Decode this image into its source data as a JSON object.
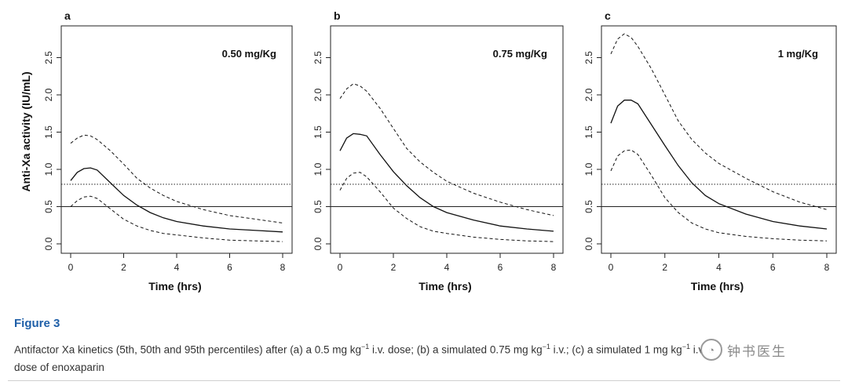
{
  "figure": {
    "caption_title": "Figure 3",
    "caption_parts": [
      "Antifactor Xa kinetics (5th, 50th and 95th percentiles) after (a) a 0.5 mg kg",
      "−1",
      " i.v. dose; (b) a simulated 0.75 mg kg",
      "−1",
      " i.v.; (c) a simulated 1 mg kg",
      "−1",
      " i.v."
    ],
    "caption_line2": "dose of enoxaparin",
    "watermark": "钟书医生"
  },
  "chart_data": [
    {
      "type": "line",
      "panel_label": "a",
      "dose_label": "0.50 mg/Kg",
      "xlabel": "Time (hrs)",
      "ylabel": "Anti-Xa activity (IU/mL)",
      "xlim": [
        0,
        8
      ],
      "ylim": [
        0,
        2.8
      ],
      "xticks": [
        0,
        2,
        4,
        6,
        8
      ],
      "yticks": [
        0.0,
        0.5,
        1.0,
        1.5,
        2.0,
        2.5
      ],
      "reference_lines": [
        {
          "y": 0.8,
          "style": "dotted"
        },
        {
          "y": 0.5,
          "style": "solid"
        }
      ],
      "series": [
        {
          "style": "dashed",
          "x": [
            0,
            0.25,
            0.5,
            0.75,
            1.0,
            1.5,
            2.0,
            2.5,
            3.0,
            3.5,
            4.0,
            5.0,
            6.0,
            7.0,
            8.0
          ],
          "y": [
            1.35,
            1.42,
            1.46,
            1.45,
            1.4,
            1.25,
            1.07,
            0.88,
            0.75,
            0.65,
            0.57,
            0.46,
            0.38,
            0.33,
            0.28
          ]
        },
        {
          "style": "solid",
          "x": [
            0,
            0.25,
            0.5,
            0.75,
            1.0,
            1.5,
            2.0,
            2.5,
            3.0,
            3.5,
            4.0,
            5.0,
            6.0,
            7.0,
            8.0
          ],
          "y": [
            0.85,
            0.96,
            1.01,
            1.02,
            0.99,
            0.82,
            0.65,
            0.52,
            0.42,
            0.35,
            0.3,
            0.24,
            0.2,
            0.18,
            0.16
          ]
        },
        {
          "style": "dashed",
          "x": [
            0,
            0.25,
            0.5,
            0.75,
            1.0,
            1.5,
            2.0,
            2.5,
            3.0,
            3.5,
            4.0,
            5.0,
            6.0,
            7.0,
            8.0
          ],
          "y": [
            0.5,
            0.58,
            0.63,
            0.64,
            0.61,
            0.47,
            0.33,
            0.24,
            0.18,
            0.14,
            0.12,
            0.08,
            0.05,
            0.04,
            0.03
          ]
        }
      ]
    },
    {
      "type": "line",
      "panel_label": "b",
      "dose_label": "0.75 mg/Kg",
      "xlabel": "Time (hrs)",
      "ylabel": "",
      "xlim": [
        0,
        8
      ],
      "ylim": [
        0,
        2.8
      ],
      "xticks": [
        0,
        2,
        4,
        6,
        8
      ],
      "yticks": [
        0.0,
        0.5,
        1.0,
        1.5,
        2.0,
        2.5
      ],
      "reference_lines": [
        {
          "y": 0.8,
          "style": "dotted"
        },
        {
          "y": 0.5,
          "style": "solid"
        }
      ],
      "series": [
        {
          "style": "dashed",
          "x": [
            0,
            0.25,
            0.5,
            0.75,
            1.0,
            1.5,
            2.0,
            2.5,
            3.0,
            3.5,
            4.0,
            5.0,
            6.0,
            7.0,
            8.0
          ],
          "y": [
            1.95,
            2.08,
            2.15,
            2.12,
            2.05,
            1.82,
            1.55,
            1.28,
            1.1,
            0.96,
            0.84,
            0.68,
            0.56,
            0.46,
            0.38
          ]
        },
        {
          "style": "solid",
          "x": [
            0,
            0.25,
            0.5,
            0.75,
            1.0,
            1.5,
            2.0,
            2.5,
            3.0,
            3.5,
            4.0,
            5.0,
            6.0,
            7.0,
            8.0
          ],
          "y": [
            1.25,
            1.42,
            1.48,
            1.47,
            1.45,
            1.2,
            0.97,
            0.78,
            0.62,
            0.5,
            0.42,
            0.32,
            0.24,
            0.2,
            0.17
          ]
        },
        {
          "style": "dashed",
          "x": [
            0,
            0.25,
            0.5,
            0.75,
            1.0,
            1.5,
            2.0,
            2.5,
            3.0,
            3.5,
            4.0,
            5.0,
            6.0,
            7.0,
            8.0
          ],
          "y": [
            0.72,
            0.88,
            0.95,
            0.96,
            0.9,
            0.7,
            0.48,
            0.34,
            0.23,
            0.17,
            0.14,
            0.09,
            0.06,
            0.04,
            0.03
          ]
        }
      ]
    },
    {
      "type": "line",
      "panel_label": "c",
      "dose_label": "1 mg/Kg",
      "xlabel": "Time (hrs)",
      "ylabel": "",
      "xlim": [
        0,
        8
      ],
      "ylim": [
        0,
        2.8
      ],
      "xticks": [
        0,
        2,
        4,
        6,
        8
      ],
      "yticks": [
        0.0,
        0.5,
        1.0,
        1.5,
        2.0,
        2.5
      ],
      "reference_lines": [
        {
          "y": 0.8,
          "style": "dotted"
        },
        {
          "y": 0.5,
          "style": "solid"
        }
      ],
      "series": [
        {
          "style": "dashed",
          "x": [
            0,
            0.25,
            0.5,
            0.75,
            1.0,
            1.5,
            2.0,
            2.5,
            3.0,
            3.5,
            4.0,
            5.0,
            6.0,
            7.0,
            8.0
          ],
          "y": [
            2.55,
            2.75,
            2.82,
            2.77,
            2.65,
            2.35,
            2.0,
            1.65,
            1.4,
            1.22,
            1.08,
            0.88,
            0.7,
            0.56,
            0.46
          ]
        },
        {
          "style": "solid",
          "x": [
            0,
            0.25,
            0.5,
            0.75,
            1.0,
            1.5,
            2.0,
            2.5,
            3.0,
            3.5,
            4.0,
            5.0,
            6.0,
            7.0,
            8.0
          ],
          "y": [
            1.62,
            1.85,
            1.93,
            1.93,
            1.88,
            1.6,
            1.32,
            1.05,
            0.82,
            0.65,
            0.54,
            0.4,
            0.3,
            0.24,
            0.2
          ]
        },
        {
          "style": "dashed",
          "x": [
            0,
            0.25,
            0.5,
            0.75,
            1.0,
            1.5,
            2.0,
            2.5,
            3.0,
            3.5,
            4.0,
            5.0,
            6.0,
            7.0,
            8.0
          ],
          "y": [
            0.98,
            1.18,
            1.25,
            1.26,
            1.2,
            0.92,
            0.62,
            0.42,
            0.28,
            0.2,
            0.15,
            0.1,
            0.07,
            0.05,
            0.04
          ]
        }
      ]
    }
  ]
}
